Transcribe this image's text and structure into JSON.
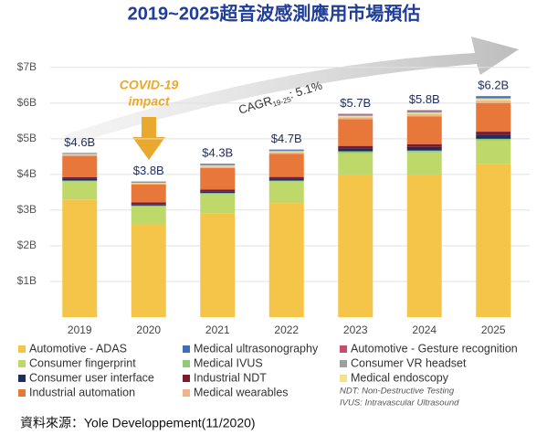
{
  "chart_data": {
    "type": "stacked_bar",
    "title": "2019~2025超音波感測應用市場預估",
    "categories": [
      "2019",
      "2020",
      "2021",
      "2022",
      "2023",
      "2024",
      "2025"
    ],
    "series": [
      {
        "name": "Automotive - ADAS",
        "color": "#f5c54a",
        "values": [
          3.3,
          2.6,
          2.9,
          3.2,
          4.0,
          4.0,
          4.3
        ]
      },
      {
        "name": "Medical ultrasonography",
        "color": "#3d6fb5",
        "values": [
          0.02,
          0.02,
          0.02,
          0.02,
          0.02,
          0.02,
          0.03
        ]
      },
      {
        "name": "Automotive - Gesture recognition",
        "color": "#c94c6e",
        "values": [
          0,
          0,
          0.01,
          0.01,
          0.01,
          0.02,
          0.02
        ]
      },
      {
        "name": "Consumer fingerprint",
        "color": "#bfd86a",
        "values": [
          0.5,
          0.5,
          0.55,
          0.6,
          0.6,
          0.62,
          0.65
        ]
      },
      {
        "name": "Medical IVUS",
        "color": "#8fc97a",
        "values": [
          0.03,
          0.03,
          0.03,
          0.03,
          0.05,
          0.05,
          0.05
        ]
      },
      {
        "name": "Consumer VR headset",
        "color": "#9e9e9e",
        "values": [
          0.01,
          0.01,
          0.02,
          0.02,
          0.03,
          0.03,
          0.03
        ]
      },
      {
        "name": "Consumer user interface",
        "color": "#1f2d5a",
        "values": [
          0.04,
          0.04,
          0.05,
          0.05,
          0.08,
          0.1,
          0.12
        ]
      },
      {
        "name": "Industrial NDT",
        "color": "#7b1c2e",
        "values": [
          0.05,
          0.05,
          0.05,
          0.05,
          0.07,
          0.08,
          0.08
        ]
      },
      {
        "name": "Medical endoscopy",
        "color": "#f7e08a",
        "values": [
          0.02,
          0.02,
          0.03,
          0.03,
          0.04,
          0.04,
          0.05
        ]
      },
      {
        "name": "Industrial automation",
        "color": "#e8773a",
        "values": [
          0.6,
          0.5,
          0.6,
          0.65,
          0.75,
          0.78,
          0.8
        ]
      },
      {
        "name": "Medical wearables",
        "color": "#f0b48a",
        "values": [
          0.03,
          0.03,
          0.04,
          0.04,
          0.05,
          0.06,
          0.07
        ]
      }
    ],
    "totals": {
      "values": [
        4.6,
        3.8,
        4.3,
        4.7,
        5.7,
        5.8,
        6.2
      ],
      "value_labels": [
        "$4.6B",
        "$3.8B",
        "$4.3B",
        "$4.7B",
        "$5.7B",
        "$5.8B",
        "$6.2B"
      ]
    },
    "ylim": [
      0,
      7.2
    ],
    "yticks": [
      {
        "value": 1,
        "label": "$1B"
      },
      {
        "value": 2,
        "label": "$2B"
      },
      {
        "value": 3,
        "label": "$3B"
      },
      {
        "value": 4,
        "label": "$4B"
      },
      {
        "value": 5,
        "label": "$5B"
      },
      {
        "value": 6,
        "label": "$6B"
      },
      {
        "value": 7,
        "label": "$7B"
      }
    ],
    "grid": true,
    "annotations": {
      "covid": [
        "COVID-19",
        "impact"
      ],
      "cagr": [
        "CAGR",
        "19-25",
        ": 5.1%"
      ]
    },
    "notes": [
      "NDT: Non-Destructive Testing",
      "IVUS: Intravascular Ultrasound"
    ],
    "source": "資料來源：Yole Developpement(11/2020)"
  }
}
